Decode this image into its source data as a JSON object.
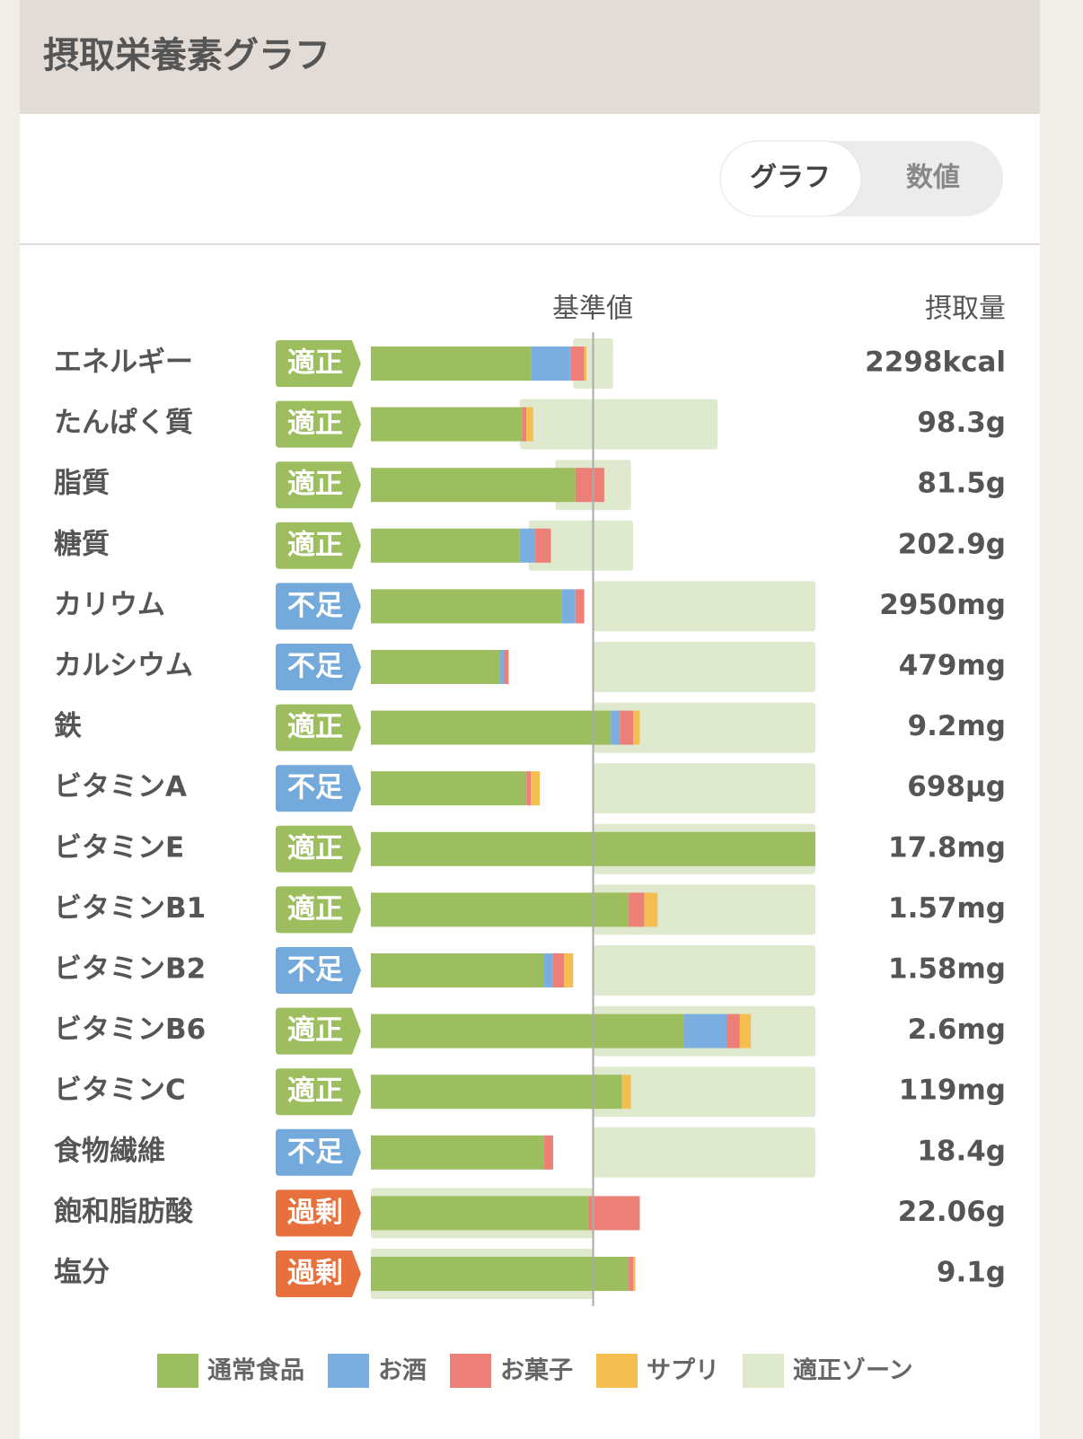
{
  "header": {
    "title": "摂取栄養素グラフ"
  },
  "toggle": {
    "options": [
      "グラフ",
      "数値"
    ],
    "selected": 0
  },
  "chart_data": {
    "type": "bar",
    "orientation": "horizontal",
    "stacked": true,
    "column_headers": {
      "reference": "基準値",
      "intake": "摂取量"
    },
    "categories": [
      "エネルギー",
      "たんぱく質",
      "脂質",
      "糖質",
      "カリウム",
      "カルシウム",
      "鉄",
      "ビタミンA",
      "ビタミンE",
      "ビタミンB1",
      "ビタミンB2",
      "ビタミンB6",
      "ビタミンC",
      "食物繊維",
      "飽和脂肪酸",
      "塩分"
    ],
    "status": [
      "適正",
      "適正",
      "適正",
      "適正",
      "不足",
      "不足",
      "適正",
      "不足",
      "適正",
      "適正",
      "不足",
      "適正",
      "適正",
      "不足",
      "過剰",
      "過剰"
    ],
    "status_colors": [
      "#9dbe5e",
      "#9dbe5e",
      "#9dbe5e",
      "#9dbe5e",
      "#74a9dc",
      "#74a9dc",
      "#9dbe5e",
      "#74a9dc",
      "#9dbe5e",
      "#9dbe5e",
      "#74a9dc",
      "#9dbe5e",
      "#9dbe5e",
      "#74a9dc",
      "#e8703c",
      "#e8703c"
    ],
    "intake": [
      "2298kcal",
      "98.3g",
      "81.5g",
      "202.9g",
      "2950mg",
      "479mg",
      "9.2mg",
      "698µg",
      "17.8mg",
      "1.57mg",
      "1.58mg",
      "2.6mg",
      "119mg",
      "18.4g",
      "22.06g",
      "9.1g"
    ],
    "xlim": [
      0,
      200
    ],
    "reference": 100,
    "series": [
      {
        "name": "通常食品",
        "color": "#9dbe5e",
        "values": [
          72,
          68,
          92,
          67,
          86,
          58,
          108,
          70,
          200,
          116,
          78,
          141,
          113,
          78,
          98,
          116
        ]
      },
      {
        "name": "お酒",
        "color": "#7aaee0",
        "values": [
          18,
          0,
          0,
          7,
          6,
          2,
          4,
          0,
          0,
          0,
          4,
          19,
          0,
          0,
          0,
          0
        ]
      },
      {
        "name": "お菓子",
        "color": "#ec8078",
        "values": [
          6,
          2,
          13,
          7,
          4,
          2,
          6,
          2,
          0,
          7,
          5,
          6,
          0,
          4,
          23,
          2
        ]
      },
      {
        "name": "サプリ",
        "color": "#f4bf50",
        "values": [
          1,
          3,
          0,
          0,
          0,
          0,
          3,
          4,
          0,
          6,
          4,
          5,
          4,
          0,
          0,
          1
        ]
      }
    ],
    "zone": {
      "name": "適正ゾーン",
      "color": "#dfe9ce",
      "ranges": [
        [
          91,
          109
        ],
        [
          67,
          156
        ],
        [
          83,
          117
        ],
        [
          71,
          118
        ],
        [
          100,
          200
        ],
        [
          100,
          200
        ],
        [
          100,
          200
        ],
        [
          100,
          200
        ],
        [
          100,
          200
        ],
        [
          100,
          200
        ],
        [
          100,
          200
        ],
        [
          100,
          200
        ],
        [
          100,
          200
        ],
        [
          100,
          200
        ],
        [
          0,
          100
        ],
        [
          0,
          100
        ]
      ]
    }
  }
}
